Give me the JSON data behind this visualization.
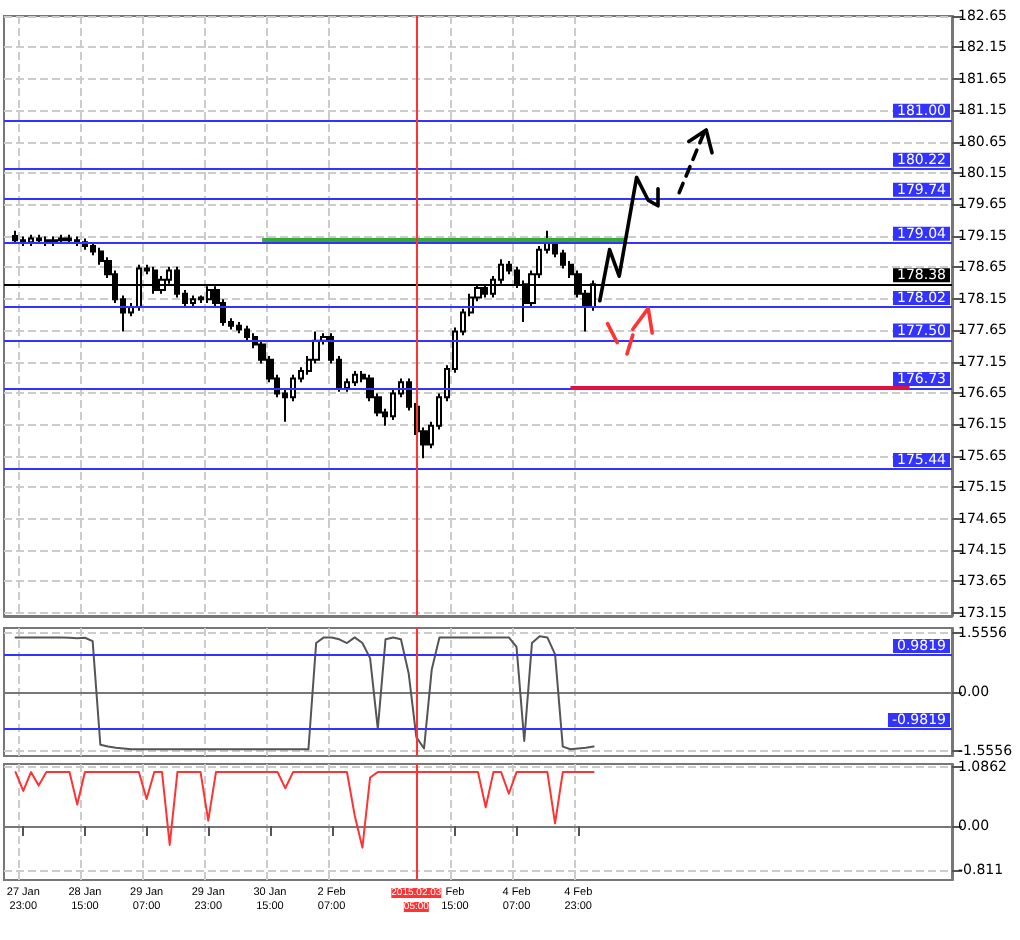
{
  "chart_data": [
    {
      "type": "candlestick",
      "color": "#000000",
      "categories": [
        null,
        null,
        "27 Jan 23:00",
        null,
        null,
        null,
        null,
        null,
        null,
        null,
        "28 Jan 15:00",
        null,
        null,
        null,
        null,
        null,
        null,
        null,
        "29 Jan 07:00",
        null,
        null,
        null,
        null,
        null,
        null,
        null,
        "29 Jan 23:00",
        null,
        null,
        null,
        null,
        null,
        null,
        null,
        "30 Jan 15:00",
        null,
        null,
        null,
        null,
        null,
        null,
        null,
        "2 Feb 07:00",
        null,
        null,
        null,
        null,
        null,
        null,
        null,
        null,
        null,
        null,
        "2015.02.03 05:00",
        null,
        null,
        null,
        null,
        "Feb 15:00",
        null,
        null,
        null,
        null,
        null,
        null,
        null,
        "4 Feb 07:00",
        null,
        null,
        null,
        null,
        null,
        null,
        null,
        "4 Feb 23:00",
        null,
        null,
        null,
        null,
        null,
        null,
        null,
        null,
        null,
        null,
        null,
        null,
        null,
        null,
        null,
        null,
        null,
        null,
        null,
        null,
        null,
        null,
        null,
        null,
        null,
        null,
        null,
        null,
        null,
        null,
        null,
        null,
        null,
        null,
        null,
        null,
        null,
        null,
        null,
        null,
        null,
        null,
        null,
        null,
        null,
        null,
        null,
        null
      ],
      "ohlc": [
        null,
        [
          179.15,
          179.23,
          179.02,
          179.08
        ],
        [
          179.08,
          179.14,
          178.99,
          179.05
        ],
        [
          179.05,
          179.17,
          178.99,
          179.11
        ],
        [
          179.11,
          179.17,
          179.02,
          179.08
        ],
        [
          179.08,
          179.14,
          178.99,
          179.05
        ],
        [
          179.05,
          179.14,
          178.99,
          179.08
        ],
        [
          179.08,
          179.17,
          179.02,
          179.11
        ],
        [
          179.11,
          179.17,
          179.02,
          179.08
        ],
        [
          179.08,
          179.14,
          178.99,
          179.05
        ],
        [
          179.05,
          179.11,
          178.93,
          178.99
        ],
        [
          178.99,
          179.05,
          178.84,
          178.9
        ],
        [
          178.9,
          178.96,
          178.69,
          178.75
        ],
        [
          178.75,
          178.81,
          178.48,
          178.54
        ],
        [
          178.54,
          178.6,
          178.08,
          178.14
        ],
        [
          178.14,
          178.2,
          177.63,
          177.93
        ],
        [
          177.93,
          178.08,
          177.87,
          178.02
        ],
        [
          178.02,
          178.69,
          177.96,
          178.63
        ],
        [
          178.63,
          178.69,
          178.54,
          178.6
        ],
        [
          178.6,
          178.66,
          178.23,
          178.29
        ],
        [
          178.29,
          178.51,
          178.23,
          178.45
        ],
        [
          178.45,
          178.66,
          178.39,
          178.6
        ],
        [
          178.6,
          178.66,
          178.17,
          178.23
        ],
        [
          178.23,
          178.29,
          178.02,
          178.08
        ],
        [
          178.08,
          178.2,
          178.02,
          178.14
        ],
        [
          178.14,
          178.2,
          178.08,
          178.17
        ],
        [
          178.14,
          178.35,
          178.08,
          178.29
        ],
        [
          178.29,
          178.35,
          178.02,
          178.08
        ],
        [
          178.08,
          178.14,
          177.72,
          177.78
        ],
        [
          177.78,
          177.84,
          177.66,
          177.72
        ],
        [
          177.72,
          177.78,
          177.6,
          177.66
        ],
        [
          177.66,
          177.72,
          177.48,
          177.54
        ],
        [
          177.54,
          177.6,
          177.36,
          177.42
        ],
        [
          177.42,
          177.48,
          177.12,
          177.18
        ],
        [
          177.18,
          177.24,
          176.82,
          176.88
        ],
        [
          176.88,
          176.94,
          176.58,
          176.64
        ],
        [
          176.64,
          176.7,
          176.19,
          176.58
        ],
        [
          176.58,
          176.94,
          176.52,
          176.88
        ],
        [
          176.88,
          177.06,
          176.82,
          177.0
        ],
        [
          177.0,
          177.24,
          176.94,
          177.18
        ],
        [
          177.18,
          177.63,
          177.12,
          177.48
        ],
        [
          177.48,
          177.6,
          177.42,
          177.54
        ],
        [
          177.54,
          177.6,
          177.12,
          177.18
        ],
        [
          177.18,
          177.24,
          176.67,
          176.73
        ],
        [
          176.73,
          176.88,
          176.67,
          176.82
        ],
        [
          176.82,
          177.0,
          176.76,
          176.94
        ],
        [
          176.94,
          177.0,
          176.82,
          176.88
        ],
        [
          176.88,
          176.94,
          176.52,
          176.58
        ],
        [
          176.58,
          176.64,
          176.28,
          176.34
        ],
        [
          176.34,
          176.4,
          176.13,
          176.28
        ],
        [
          176.28,
          176.7,
          176.22,
          176.64
        ],
        [
          176.64,
          176.88,
          176.58,
          176.82
        ],
        [
          176.82,
          176.88,
          176.37,
          176.43
        ],
        [
          176.43,
          176.49,
          175.98,
          176.04
        ],
        [
          176.04,
          176.1,
          175.61,
          175.83
        ],
        [
          175.83,
          176.19,
          175.77,
          176.13
        ],
        [
          176.13,
          176.64,
          176.07,
          176.58
        ],
        [
          176.58,
          177.09,
          176.52,
          177.03
        ],
        [
          177.03,
          177.69,
          176.97,
          177.63
        ],
        [
          177.63,
          177.99,
          177.57,
          177.93
        ],
        [
          177.93,
          178.23,
          177.87,
          178.17
        ],
        [
          178.17,
          178.38,
          178.11,
          178.32
        ],
        [
          178.32,
          178.38,
          178.17,
          178.23
        ],
        [
          178.23,
          178.51,
          178.17,
          178.45
        ],
        [
          178.45,
          178.78,
          178.39,
          178.69
        ],
        [
          178.69,
          178.75,
          178.54,
          178.6
        ],
        [
          178.6,
          178.66,
          178.32,
          178.38
        ],
        [
          178.38,
          178.44,
          177.78,
          178.08
        ],
        [
          178.08,
          178.6,
          178.02,
          178.54
        ],
        [
          178.54,
          178.99,
          178.48,
          178.93
        ],
        [
          178.93,
          179.23,
          178.87,
          179.05
        ],
        [
          179.05,
          179.11,
          178.81,
          178.87
        ],
        [
          178.87,
          178.93,
          178.63,
          178.69
        ],
        [
          178.69,
          178.75,
          178.48,
          178.54
        ],
        [
          178.54,
          178.6,
          178.17,
          178.23
        ],
        [
          178.23,
          178.29,
          177.63,
          178.02
        ],
        [
          178.02,
          178.44,
          177.96,
          178.38
        ],
        null,
        null,
        null,
        null,
        null,
        null,
        null,
        null,
        null,
        null,
        null,
        null,
        null,
        null,
        null,
        null,
        null,
        null,
        null,
        null,
        null,
        null,
        null,
        null,
        null,
        null,
        null,
        null,
        null,
        null,
        null,
        null,
        null,
        null,
        null,
        null,
        null,
        null,
        null,
        null,
        null,
        null,
        null,
        null,
        null,
        null
      ],
      "ylim": [
        173.1,
        182.65
      ],
      "yticks": [
        173.15,
        173.65,
        174.15,
        174.65,
        175.15,
        175.65,
        176.15,
        176.65,
        177.15,
        177.65,
        178.15,
        178.65,
        179.15,
        179.65,
        180.15,
        180.65,
        181.15,
        181.65,
        182.15,
        182.65
      ],
      "ref_lines": [
        {
          "axis": "y",
          "value": 181.0,
          "label": "181.00",
          "color": "#3333ff"
        },
        {
          "axis": "y",
          "value": 180.22,
          "label": "180.22",
          "color": "#3333ff"
        },
        {
          "axis": "y",
          "value": 179.74,
          "label": "179.74",
          "color": "#3333ff"
        },
        {
          "axis": "y",
          "value": 179.04,
          "label": "179.04",
          "color": "#3333ff"
        },
        {
          "axis": "y",
          "value": 178.38,
          "label": "178.38",
          "color": "#000000"
        },
        {
          "axis": "y",
          "value": 178.02,
          "label": "178.02",
          "color": "#3333ff"
        },
        {
          "axis": "y",
          "value": 177.5,
          "label": "177.50",
          "color": "#3333ff"
        },
        {
          "axis": "y",
          "value": 176.73,
          "label": "176.73",
          "color": "#3333ff"
        },
        {
          "axis": "y",
          "value": 175.44,
          "label": "175.44",
          "color": "#3333ff"
        },
        {
          "axis": "y",
          "value": 179.1,
          "color": "#33aa33"
        },
        {
          "axis": "y",
          "value": 176.75,
          "color": "#dd1144"
        },
        {
          "axis": "x",
          "value": "2015.02.03 05:00",
          "color": "#ff3333"
        }
      ],
      "grid": true,
      "tick_labels": "y"
    },
    {
      "type": "line",
      "categories": [
        null,
        null,
        "27 Jan 23:00",
        null,
        null,
        null,
        null,
        null,
        null,
        null,
        "28 Jan 15:00",
        null,
        null,
        null,
        null,
        null,
        null,
        null,
        "29 Jan 07:00",
        null,
        null,
        null,
        null,
        null,
        null,
        null,
        "29 Jan 23:00",
        null,
        null,
        null,
        null,
        null,
        null,
        null,
        "30 Jan 15:00",
        null,
        null,
        null,
        null,
        null,
        null,
        null,
        "2 Feb 07:00",
        null,
        null,
        null,
        null,
        null,
        null,
        null,
        null,
        null,
        null,
        "2015.02.03 05:00",
        null,
        null,
        null,
        null,
        "Feb 15:00",
        null,
        null,
        null,
        null,
        null,
        null,
        null,
        "4 Feb 07:00",
        null,
        null,
        null,
        null,
        null,
        null,
        null,
        "4 Feb 23:00",
        null,
        null,
        null,
        null,
        null,
        null,
        null,
        null,
        null,
        null,
        null,
        null,
        null,
        null,
        null,
        null,
        null,
        null,
        null,
        null,
        null,
        null,
        null,
        null,
        null,
        null,
        null,
        null,
        null,
        null,
        null,
        null,
        null,
        null,
        null,
        null,
        null,
        null,
        null,
        null,
        null,
        null,
        null,
        null,
        null,
        null,
        null,
        null
      ],
      "series": [
        {
          "color": "#555555",
          "values": [
            null,
            1.45,
            1.45,
            1.45,
            1.45,
            1.45,
            1.45,
            1.45,
            1.44,
            1.43,
            1.44,
            1.35,
            -1.4,
            -1.45,
            -1.48,
            -1.5,
            -1.52,
            -1.52,
            -1.52,
            -1.52,
            -1.52,
            -1.52,
            -1.52,
            -1.52,
            -1.52,
            -1.52,
            -1.52,
            -1.52,
            -1.52,
            -1.52,
            -1.52,
            -1.52,
            -1.52,
            -1.52,
            -1.52,
            -1.52,
            -1.52,
            -1.52,
            -1.52,
            -1.52,
            1.3,
            1.45,
            1.45,
            1.4,
            1.3,
            1.45,
            1.3,
            0.9,
            -0.98,
            1.4,
            1.45,
            1.4,
            0.5,
            -1.2,
            -1.5,
            0.6,
            1.45,
            1.45,
            1.45,
            1.45,
            1.45,
            1.45,
            1.45,
            1.45,
            1.45,
            1.45,
            1.2,
            -1.3,
            1.3,
            1.48,
            1.45,
            1.0,
            -1.45,
            -1.52,
            -1.5,
            -1.48,
            -1.45,
            null,
            null,
            null,
            null,
            null,
            null,
            null,
            null,
            null,
            null,
            null,
            null,
            null,
            null,
            null,
            null,
            null,
            null,
            null,
            null,
            null,
            null,
            null,
            null,
            null,
            null,
            null,
            null,
            null,
            null,
            null,
            null,
            null,
            null,
            null,
            null,
            null,
            null,
            null,
            null,
            null,
            null,
            null,
            null,
            null,
            null
          ]
        }
      ],
      "ylim": [
        -1.7,
        1.7
      ],
      "yticks": [
        -1.5556,
        {
          "value": 0,
          "label": "0.00"
        },
        1.5556
      ],
      "ref_lines": [
        {
          "axis": "y",
          "value": 0.9819,
          "label": "0.9819",
          "color": "#3333ff"
        },
        {
          "axis": "y",
          "value": -0.9819,
          "label": "-0.9819",
          "color": "#3333ff"
        },
        {
          "axis": "x",
          "value": "2015.02.03 05:00",
          "color": "#ff3333"
        }
      ],
      "grid": true,
      "tick_labels": "y"
    },
    {
      "type": "line",
      "categories": [
        null,
        null,
        "27 Jan 23:00",
        null,
        null,
        null,
        null,
        null,
        null,
        null,
        "28 Jan 15:00",
        null,
        null,
        null,
        null,
        null,
        null,
        null,
        "29 Jan 07:00",
        null,
        null,
        null,
        null,
        null,
        null,
        null,
        "29 Jan 23:00",
        null,
        null,
        null,
        null,
        null,
        null,
        null,
        "30 Jan 15:00",
        null,
        null,
        null,
        null,
        null,
        null,
        null,
        "2 Feb 07:00",
        null,
        null,
        null,
        null,
        null,
        null,
        null,
        null,
        null,
        null,
        "2015.02.03 05:00",
        null,
        null,
        null,
        null,
        "Feb 15:00",
        null,
        null,
        null,
        null,
        null,
        null,
        null,
        "4 Feb 07:00",
        null,
        null,
        null,
        null,
        null,
        null,
        null,
        "4 Feb 23:00",
        null,
        null,
        null,
        null,
        null,
        null,
        null,
        null,
        null,
        null,
        null,
        null,
        null,
        null,
        null,
        null,
        null,
        null,
        null,
        null,
        null,
        null,
        null,
        null,
        null,
        null,
        null,
        null,
        null,
        null,
        null,
        null,
        null,
        null,
        null,
        null,
        null,
        null,
        null,
        null,
        null,
        null,
        null,
        null,
        null,
        null,
        null,
        null
      ],
      "series": [
        {
          "color": "#ff3333",
          "values": [
            null,
            1.0,
            0.65,
            1.0,
            0.75,
            1.0,
            1.0,
            1.0,
            1.0,
            0.4,
            1.0,
            1.0,
            1.0,
            1.0,
            1.0,
            1.0,
            1.0,
            1.0,
            0.5,
            1.0,
            1.0,
            -0.35,
            1.0,
            1.0,
            1.0,
            1.0,
            0.1,
            1.0,
            1.0,
            1.0,
            1.0,
            1.0,
            1.0,
            1.0,
            1.0,
            1.0,
            0.7,
            1.0,
            1.0,
            1.0,
            1.0,
            1.0,
            1.0,
            1.0,
            1.0,
            0.2,
            -0.4,
            0.9,
            1.0,
            1.0,
            1.0,
            1.0,
            1.0,
            1.0,
            1.0,
            1.0,
            1.0,
            1.0,
            1.0,
            1.0,
            1.0,
            1.0,
            0.35,
            1.0,
            1.0,
            0.6,
            1.0,
            1.0,
            1.0,
            1.0,
            1.0,
            0.05,
            1.0,
            1.0,
            1.0,
            1.0,
            1.0,
            null,
            null,
            null,
            null,
            null,
            null,
            null,
            null,
            null,
            null,
            null,
            null,
            null,
            null,
            null,
            null,
            null,
            null,
            null,
            null,
            null,
            null,
            null,
            null,
            null,
            null,
            null,
            null,
            null,
            null,
            null,
            null,
            null,
            null,
            null,
            null,
            null,
            null,
            null,
            null,
            null,
            null,
            null,
            null,
            null,
            null
          ]
        }
      ],
      "ylim": [
        -1.0,
        1.15
      ],
      "yticks": [
        -0.811,
        {
          "value": 0,
          "label": "0.00"
        },
        1.0862
      ],
      "ref_lines": [
        {
          "axis": "x",
          "value": "2015.02.03 05:00",
          "color": "#ff3333"
        }
      ],
      "grid": true
    }
  ]
}
